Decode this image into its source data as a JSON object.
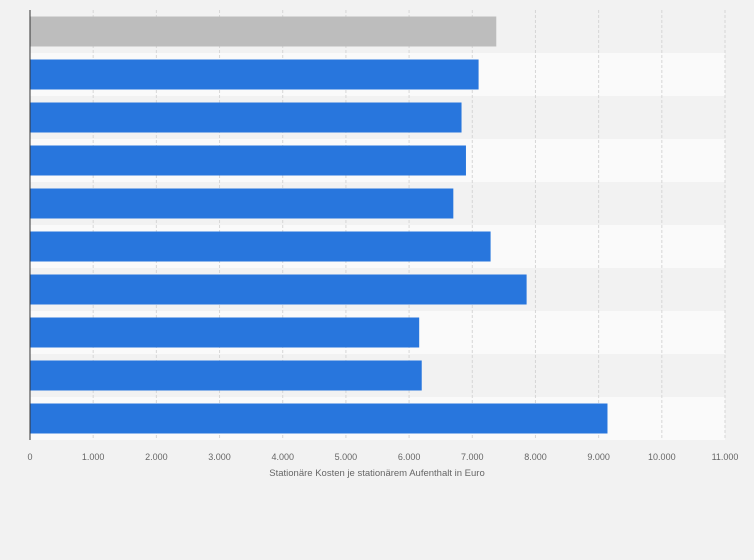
{
  "chart_data": {
    "type": "bar",
    "orientation": "horizontal",
    "title": "",
    "xlabel": "Stationäre Kosten je stationärem Aufenthalt in Euro",
    "ylabel": "",
    "xlim": [
      0,
      11000
    ],
    "x_ticks": [
      0,
      1000,
      2000,
      3000,
      4000,
      5000,
      6000,
      7000,
      8000,
      9000,
      10000,
      11000
    ],
    "x_tick_labels": [
      "0",
      "1.000",
      "2.000",
      "3.000",
      "4.000",
      "5.000",
      "6.000",
      "7.000",
      "8.000",
      "9.000",
      "10.000",
      "11.000"
    ],
    "categories": [
      "",
      "",
      "",
      "",
      "",
      "",
      "",
      "",
      "",
      ""
    ],
    "values": [
      7380,
      7100,
      6830,
      6900,
      6700,
      7290,
      7860,
      6160,
      6200,
      9140
    ],
    "bar_colors": [
      "#bdbdbd",
      "#2876dd",
      "#2876dd",
      "#2876dd",
      "#2876dd",
      "#2876dd",
      "#2876dd",
      "#2876dd",
      "#2876dd",
      "#2876dd"
    ],
    "grid": true,
    "background": "#f2f2f2",
    "band_colors": [
      "#f2f2f2",
      "#fafafa"
    ],
    "gridline_color": "#d6d6d6",
    "axis_color": "#333333"
  }
}
